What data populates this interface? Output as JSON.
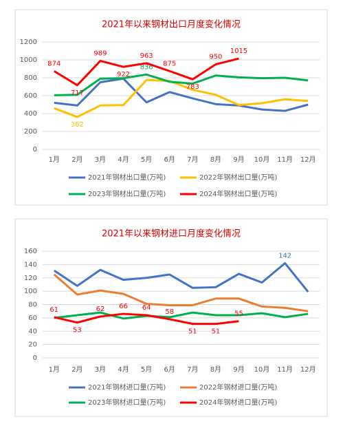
{
  "chart_data": [
    {
      "type": "line",
      "title": "2021年以来钢材出口月度变化情况",
      "categories": [
        "1月",
        "2月",
        "3月",
        "4月",
        "5月",
        "6月",
        "7月",
        "8月",
        "9月",
        "10月",
        "11月",
        "12月"
      ],
      "ylim": [
        0,
        1200
      ],
      "yticks": [
        0,
        200,
        400,
        600,
        800,
        1000,
        1200
      ],
      "grid": true,
      "legend": "bottom",
      "series": [
        {
          "name": "2021年钢材出口量(万吨)",
          "color": "#4472c4",
          "values": [
            520,
            490,
            750,
            790,
            525,
            640,
            570,
            505,
            490,
            445,
            430,
            500
          ]
        },
        {
          "name": "2022年钢材出口量(万吨)",
          "color": "#ffc000",
          "values": [
            460,
            362,
            490,
            495,
            775,
            765,
            665,
            610,
            495,
            515,
            560,
            540
          ],
          "value_labels": [
            null,
            "362",
            null,
            null,
            null,
            null,
            null,
            null,
            null,
            null,
            null,
            null
          ]
        },
        {
          "name": "2023年钢材出口量(万吨)",
          "color": "#00b050",
          "values": [
            605,
            610,
            790,
            795,
            836,
            755,
            735,
            825,
            805,
            795,
            800,
            770
          ],
          "value_labels": [
            null,
            null,
            null,
            null,
            "836",
            null,
            null,
            null,
            null,
            null,
            null,
            null
          ]
        },
        {
          "name": "2024年钢材出口量(万吨)",
          "color": "#ff0000",
          "values": [
            874,
            717,
            989,
            922,
            963,
            875,
            783,
            950,
            1015,
            null,
            null,
            null
          ],
          "value_labels": [
            "874",
            "717",
            "989",
            "922",
            "963",
            "875",
            "783",
            "950",
            "1015",
            null,
            null,
            null
          ]
        }
      ]
    },
    {
      "type": "line",
      "title": "2021年以来钢材进口月度变化情况",
      "categories": [
        "1月",
        "2月",
        "3月",
        "4月",
        "5月",
        "6月",
        "7月",
        "8月",
        "9月",
        "10月",
        "11月",
        "12月"
      ],
      "ylim": [
        0,
        160
      ],
      "yticks": [
        0,
        20,
        40,
        60,
        80,
        100,
        120,
        140,
        160
      ],
      "grid": true,
      "legend": "bottom",
      "series": [
        {
          "name": "2021年钢材进口量(万吨)",
          "color": "#4472c4",
          "values": [
            131,
            108,
            132,
            117,
            120,
            125,
            105,
            106,
            126,
            113,
            142,
            99
          ],
          "value_labels": [
            null,
            null,
            null,
            null,
            null,
            null,
            null,
            null,
            null,
            null,
            "142",
            null
          ]
        },
        {
          "name": "2022年钢材进口量(万吨)",
          "color": "#ed7d31",
          "values": [
            125,
            95,
            101,
            96,
            81,
            79,
            79,
            89,
            89,
            77,
            75,
            70
          ]
        },
        {
          "name": "2023年钢材进口量(万吨)",
          "color": "#00b050",
          "values": [
            60,
            64,
            68,
            59,
            63,
            61,
            68,
            64,
            64,
            67,
            61,
            66
          ]
        },
        {
          "name": "2024年钢材进口量(万吨)",
          "color": "#ff0000",
          "values": [
            61,
            53,
            62,
            66,
            64,
            58,
            51,
            51,
            55,
            null,
            null,
            null
          ],
          "value_labels": [
            "61",
            "53",
            "62",
            "66",
            "64",
            "58",
            "51",
            "51",
            "55",
            null,
            null,
            null
          ]
        }
      ]
    }
  ]
}
